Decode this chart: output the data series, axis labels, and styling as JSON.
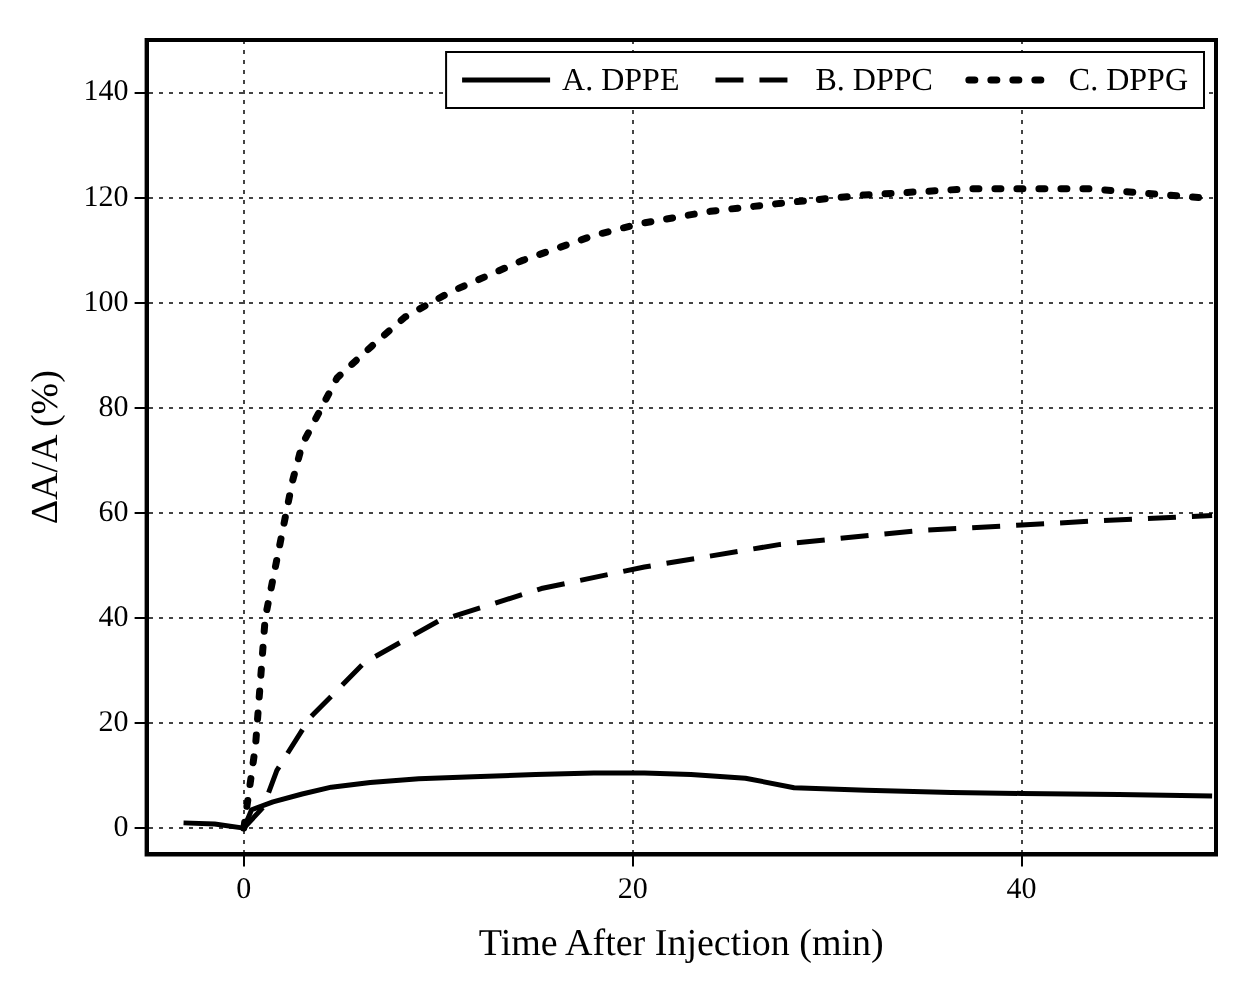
{
  "chart_data": {
    "type": "line",
    "xlabel": "Time After Injection (min)",
    "ylabel": "ΔA/A (%)",
    "xlim": [
      -5,
      50
    ],
    "xticks": [
      0,
      20,
      40
    ],
    "ylim": [
      -5,
      150
    ],
    "yticks": [
      0,
      20,
      40,
      60,
      80,
      100,
      120,
      140
    ],
    "grid": true,
    "legend": "top right",
    "marker": "none",
    "series": [
      {
        "name": "A. DPPE",
        "color": "#000000",
        "line_style": "solid",
        "x": [
          -3.1,
          -1.5,
          0,
          0.4,
          1.5,
          3,
          4.5,
          6.5,
          9,
          11.8,
          15,
          18,
          20.6,
          23,
          25.8,
          28.3,
          32,
          36.4,
          40,
          45,
          49.8
        ],
        "values": [
          1,
          0.8,
          0,
          3.5,
          5,
          6.5,
          7.8,
          8.7,
          9.4,
          9.8,
          10.2,
          10.5,
          10.5,
          10.2,
          9.5,
          7.7,
          7.2,
          6.8,
          6.6,
          6.4,
          6.1
        ]
      },
      {
        "name": "B. DPPC",
        "color": "#000000",
        "line_style": "dashed",
        "x": [
          0,
          1,
          1.7,
          3.4,
          6.2,
          10,
          15.3,
          20.6,
          27.6,
          34.6,
          40,
          44,
          49.8
        ],
        "values": [
          0,
          4,
          11,
          21,
          31.5,
          39.4,
          45.6,
          49.7,
          54,
          56.6,
          57.7,
          58.5,
          59.5
        ]
      },
      {
        "name": "C. DPPG",
        "color": "#000000",
        "line_style": "dotted",
        "x": [
          0,
          0.6,
          1.1,
          1.8,
          2.5,
          3,
          4.8,
          6.6,
          8.3,
          10.6,
          14.3,
          18,
          20.3,
          24,
          27.8,
          31.9,
          37.4,
          43.4,
          49.8
        ],
        "values": [
          0,
          15.6,
          40,
          53,
          66,
          73,
          85.7,
          91.8,
          97.3,
          102,
          108,
          112.8,
          115,
          117.4,
          119,
          120.5,
          121.7,
          121.7,
          119.8
        ]
      }
    ]
  }
}
